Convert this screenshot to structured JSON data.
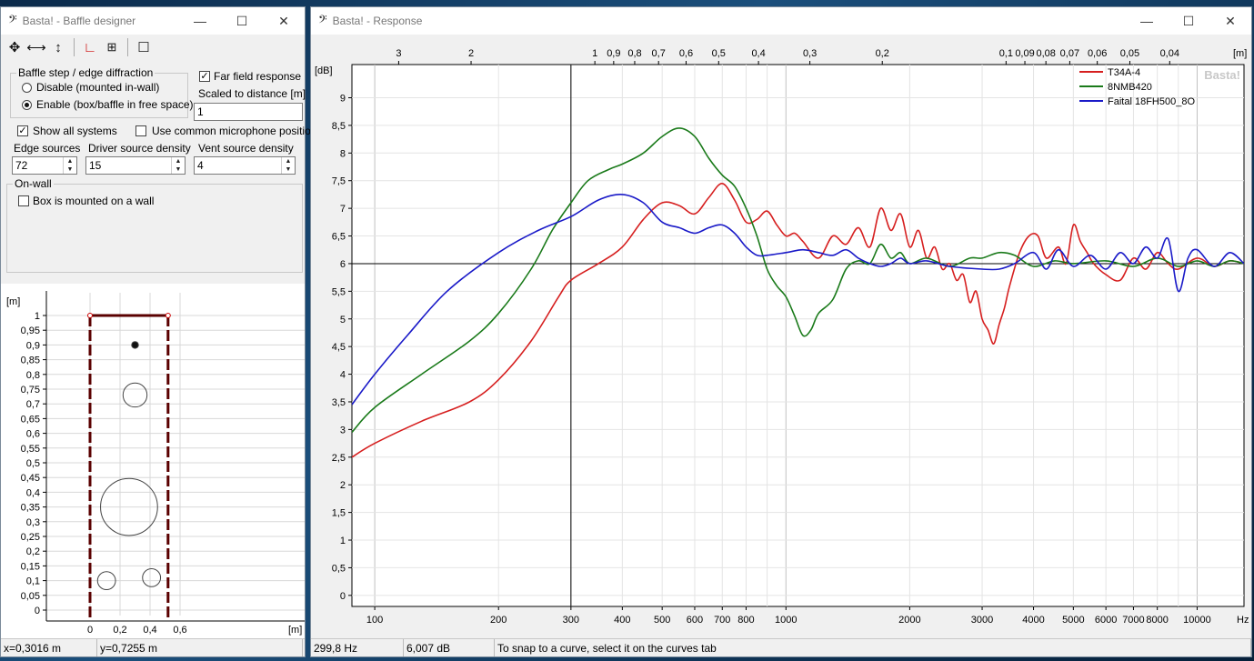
{
  "left_window": {
    "title": "Basta! - Baffle designer",
    "logo_glyph": "𝄢",
    "controls": {
      "minimize": "—",
      "maximize": "☐",
      "close": "✕"
    },
    "toolbar_icons": [
      "move-icon",
      "move-horizontal-icon",
      "move-vertical-icon",
      "corner-icon",
      "grid-icon",
      "square-icon"
    ],
    "diffraction_group": {
      "legend": "Baffle step / edge diffraction",
      "option_disable": "Disable (mounted in-wall)",
      "option_enable": "Enable (box/baffle in free space)",
      "selected": "enable"
    },
    "far_field": {
      "label": "Far field response",
      "checked": true
    },
    "scaled_label": "Scaled to distance [m]",
    "scaled_value": "1",
    "show_all_systems": {
      "label": "Show all systems",
      "checked": true
    },
    "common_mic": {
      "label": "Use common microphone position",
      "checked": false
    },
    "edge_sources": {
      "label": "Edge sources",
      "value": "72"
    },
    "driver_density": {
      "label": "Driver source density",
      "value": "15"
    },
    "vent_density": {
      "label": "Vent source density",
      "value": "4"
    },
    "on_wall": {
      "legend": "On-wall",
      "label": "Box is mounted on a wall",
      "checked": false
    },
    "plot": {
      "unit": "[m]",
      "y_ticks": [
        "1",
        "0,95",
        "0,9",
        "0,85",
        "0,8",
        "0,75",
        "0,7",
        "0,65",
        "0,6",
        "0,55",
        "0,5",
        "0,45",
        "0,4",
        "0,35",
        "0,3",
        "0,25",
        "0,2",
        "0,15",
        "0,1",
        "0,05",
        "0"
      ],
      "x_ticks": [
        "0",
        "0,2",
        "0,4",
        "0,6"
      ],
      "baffle_width_m": 0.52,
      "baffle_height_m": 1.0,
      "drivers": [
        {
          "name": "tweeter",
          "x_m": 0.3,
          "y_m": 0.9,
          "d_m": 0.045
        },
        {
          "name": "midrange",
          "x_m": 0.3,
          "y_m": 0.73,
          "d_m": 0.16
        },
        {
          "name": "woofer",
          "x_m": 0.26,
          "y_m": 0.35,
          "d_m": 0.38
        },
        {
          "name": "port-left",
          "x_m": 0.11,
          "y_m": 0.1,
          "d_m": 0.12
        },
        {
          "name": "port-right",
          "x_m": 0.41,
          "y_m": 0.11,
          "d_m": 0.12
        }
      ]
    },
    "status": {
      "x": "x=0,3016 m",
      "y": "y=0,7255 m"
    }
  },
  "right_window": {
    "title": "Basta! - Response",
    "logo_glyph": "𝄢",
    "controls": {
      "minimize": "—",
      "maximize": "☐",
      "close": "✕"
    },
    "watermark": "Basta!",
    "status": {
      "freq": "299,8 Hz",
      "level": "6,007 dB",
      "hint": "To snap to a curve, select it on the curves tab"
    }
  },
  "chart_data": {
    "type": "line",
    "ylabel": "[dB]",
    "xunit": "Hz",
    "top_axis_unit": "[m]",
    "xlim": [
      88,
      13000
    ],
    "ylim": [
      -0.2,
      9.6
    ],
    "x_scale": "log",
    "grid": true,
    "legend_position": "top-right",
    "cursor": {
      "x": 300,
      "y": 6.0
    },
    "x_ticks": [
      {
        "v": 100,
        "label": "100"
      },
      {
        "v": 200,
        "label": "200"
      },
      {
        "v": 300,
        "label": "300"
      },
      {
        "v": 400,
        "label": "400"
      },
      {
        "v": 500,
        "label": "500"
      },
      {
        "v": 600,
        "label": "600"
      },
      {
        "v": 700,
        "label": "700"
      },
      {
        "v": 800,
        "label": "800"
      },
      {
        "v": 1000,
        "label": "1000"
      },
      {
        "v": 2000,
        "label": "2000"
      },
      {
        "v": 3000,
        "label": "3000"
      },
      {
        "v": 4000,
        "label": "4000"
      },
      {
        "v": 5000,
        "label": "5000"
      },
      {
        "v": 6000,
        "label": "6000"
      },
      {
        "v": 7000,
        "label": "7000"
      },
      {
        "v": 8000,
        "label": "8000"
      },
      {
        "v": 10000,
        "label": "10000"
      }
    ],
    "top_ticks": [
      {
        "m": 3,
        "label": "3"
      },
      {
        "m": 2,
        "label": "2"
      },
      {
        "m": 1,
        "label": "1"
      },
      {
        "m": 0.9,
        "label": "0,9"
      },
      {
        "m": 0.8,
        "label": "0,8"
      },
      {
        "m": 0.7,
        "label": "0,7"
      },
      {
        "m": 0.6,
        "label": "0,6"
      },
      {
        "m": 0.5,
        "label": "0,5"
      },
      {
        "m": 0.4,
        "label": "0,4"
      },
      {
        "m": 0.3,
        "label": "0,3"
      },
      {
        "m": 0.2,
        "label": "0,2"
      },
      {
        "m": 0.1,
        "label": "0,1"
      },
      {
        "m": 0.09,
        "label": "0,09"
      },
      {
        "m": 0.08,
        "label": "0,08"
      },
      {
        "m": 0.07,
        "label": "0,07"
      },
      {
        "m": 0.06,
        "label": "0,06"
      },
      {
        "m": 0.05,
        "label": "0,05"
      },
      {
        "m": 0.04,
        "label": "0,04"
      }
    ],
    "y_ticks": [
      {
        "v": 0,
        "label": "0"
      },
      {
        "v": 0.5,
        "label": "0,5"
      },
      {
        "v": 1,
        "label": "1"
      },
      {
        "v": 1.5,
        "label": "1,5"
      },
      {
        "v": 2,
        "label": "2"
      },
      {
        "v": 2.5,
        "label": "2,5"
      },
      {
        "v": 3,
        "label": "3"
      },
      {
        "v": 3.5,
        "label": "3,5"
      },
      {
        "v": 4,
        "label": "4"
      },
      {
        "v": 4.5,
        "label": "4,5"
      },
      {
        "v": 5,
        "label": "5"
      },
      {
        "v": 5.5,
        "label": "5,5"
      },
      {
        "v": 6,
        "label": "6"
      },
      {
        "v": 6.5,
        "label": "6,5"
      },
      {
        "v": 7,
        "label": "7"
      },
      {
        "v": 7.5,
        "label": "7,5"
      },
      {
        "v": 8,
        "label": "8"
      },
      {
        "v": 8.5,
        "label": "8,5"
      },
      {
        "v": 9,
        "label": "9"
      }
    ],
    "series": [
      {
        "name": "T34A-4",
        "color": "#d61f1f",
        "points": [
          [
            88,
            2.5
          ],
          [
            100,
            2.75
          ],
          [
            130,
            3.15
          ],
          [
            170,
            3.5
          ],
          [
            200,
            3.9
          ],
          [
            240,
            4.6
          ],
          [
            280,
            5.4
          ],
          [
            300,
            5.7
          ],
          [
            350,
            6.0
          ],
          [
            400,
            6.3
          ],
          [
            450,
            6.8
          ],
          [
            500,
            7.1
          ],
          [
            550,
            7.05
          ],
          [
            600,
            6.9
          ],
          [
            650,
            7.2
          ],
          [
            700,
            7.45
          ],
          [
            750,
            7.15
          ],
          [
            800,
            6.75
          ],
          [
            850,
            6.8
          ],
          [
            900,
            6.95
          ],
          [
            950,
            6.7
          ],
          [
            1000,
            6.5
          ],
          [
            1050,
            6.55
          ],
          [
            1100,
            6.4
          ],
          [
            1200,
            6.1
          ],
          [
            1300,
            6.5
          ],
          [
            1400,
            6.35
          ],
          [
            1500,
            6.65
          ],
          [
            1600,
            6.3
          ],
          [
            1700,
            7.0
          ],
          [
            1800,
            6.6
          ],
          [
            1900,
            6.9
          ],
          [
            2000,
            6.3
          ],
          [
            2100,
            6.6
          ],
          [
            2200,
            6.1
          ],
          [
            2300,
            6.3
          ],
          [
            2400,
            5.9
          ],
          [
            2500,
            6.0
          ],
          [
            2600,
            5.7
          ],
          [
            2700,
            5.8
          ],
          [
            2800,
            5.3
          ],
          [
            2900,
            5.5
          ],
          [
            3000,
            5.0
          ],
          [
            3100,
            4.8
          ],
          [
            3200,
            4.55
          ],
          [
            3300,
            4.9
          ],
          [
            3400,
            5.2
          ],
          [
            3500,
            5.6
          ],
          [
            3700,
            6.2
          ],
          [
            3900,
            6.5
          ],
          [
            4100,
            6.5
          ],
          [
            4300,
            6.1
          ],
          [
            4600,
            6.3
          ],
          [
            4800,
            6.0
          ],
          [
            5000,
            6.7
          ],
          [
            5200,
            6.4
          ],
          [
            5400,
            6.2
          ],
          [
            5600,
            6.0
          ],
          [
            6000,
            5.8
          ],
          [
            6500,
            5.7
          ],
          [
            7000,
            6.1
          ],
          [
            7500,
            5.9
          ],
          [
            8000,
            6.2
          ],
          [
            8500,
            6.0
          ],
          [
            9000,
            5.9
          ],
          [
            10000,
            6.1
          ],
          [
            11000,
            5.95
          ],
          [
            12000,
            6.05
          ],
          [
            13000,
            6.0
          ]
        ]
      },
      {
        "name": "8NMB420",
        "color": "#1a7a1a",
        "points": [
          [
            88,
            2.95
          ],
          [
            100,
            3.4
          ],
          [
            130,
            4.0
          ],
          [
            170,
            4.6
          ],
          [
            200,
            5.1
          ],
          [
            240,
            5.9
          ],
          [
            270,
            6.6
          ],
          [
            300,
            7.1
          ],
          [
            330,
            7.5
          ],
          [
            370,
            7.7
          ],
          [
            400,
            7.8
          ],
          [
            450,
            8.0
          ],
          [
            500,
            8.3
          ],
          [
            550,
            8.45
          ],
          [
            600,
            8.3
          ],
          [
            650,
            7.9
          ],
          [
            700,
            7.6
          ],
          [
            750,
            7.4
          ],
          [
            800,
            7.0
          ],
          [
            850,
            6.5
          ],
          [
            900,
            5.9
          ],
          [
            950,
            5.6
          ],
          [
            1000,
            5.4
          ],
          [
            1050,
            5.05
          ],
          [
            1100,
            4.7
          ],
          [
            1150,
            4.8
          ],
          [
            1200,
            5.1
          ],
          [
            1300,
            5.35
          ],
          [
            1400,
            5.9
          ],
          [
            1500,
            6.05
          ],
          [
            1600,
            6.0
          ],
          [
            1700,
            6.35
          ],
          [
            1800,
            6.1
          ],
          [
            1900,
            6.2
          ],
          [
            2000,
            6.0
          ],
          [
            2200,
            6.1
          ],
          [
            2500,
            5.95
          ],
          [
            2800,
            6.1
          ],
          [
            3000,
            6.1
          ],
          [
            3300,
            6.2
          ],
          [
            3600,
            6.15
          ],
          [
            4000,
            5.95
          ],
          [
            4500,
            6.05
          ],
          [
            5000,
            6.0
          ],
          [
            6000,
            6.05
          ],
          [
            7000,
            5.95
          ],
          [
            8000,
            6.1
          ],
          [
            9000,
            5.95
          ],
          [
            10000,
            6.05
          ],
          [
            11000,
            5.95
          ],
          [
            12000,
            6.05
          ],
          [
            13000,
            6.0
          ]
        ]
      },
      {
        "name": "Faital 18FH500_8O",
        "color": "#1a1ac8",
        "points": [
          [
            88,
            3.45
          ],
          [
            100,
            4.0
          ],
          [
            120,
            4.7
          ],
          [
            150,
            5.5
          ],
          [
            200,
            6.2
          ],
          [
            250,
            6.6
          ],
          [
            300,
            6.85
          ],
          [
            350,
            7.15
          ],
          [
            400,
            7.25
          ],
          [
            450,
            7.1
          ],
          [
            500,
            6.75
          ],
          [
            550,
            6.65
          ],
          [
            600,
            6.55
          ],
          [
            650,
            6.65
          ],
          [
            700,
            6.7
          ],
          [
            750,
            6.55
          ],
          [
            800,
            6.3
          ],
          [
            850,
            6.15
          ],
          [
            900,
            6.15
          ],
          [
            1000,
            6.2
          ],
          [
            1100,
            6.25
          ],
          [
            1200,
            6.2
          ],
          [
            1300,
            6.15
          ],
          [
            1400,
            6.25
          ],
          [
            1500,
            6.1
          ],
          [
            1600,
            6.0
          ],
          [
            1700,
            5.95
          ],
          [
            1800,
            6.0
          ],
          [
            1900,
            6.1
          ],
          [
            2000,
            6.0
          ],
          [
            2200,
            6.05
          ],
          [
            2500,
            5.95
          ],
          [
            3000,
            5.9
          ],
          [
            3300,
            5.9
          ],
          [
            3600,
            6.0
          ],
          [
            4000,
            6.2
          ],
          [
            4300,
            5.9
          ],
          [
            4600,
            6.25
          ],
          [
            5000,
            5.95
          ],
          [
            5500,
            6.15
          ],
          [
            6000,
            5.9
          ],
          [
            6500,
            6.2
          ],
          [
            7000,
            6.0
          ],
          [
            7500,
            6.3
          ],
          [
            8000,
            6.1
          ],
          [
            8500,
            6.45
          ],
          [
            9000,
            5.5
          ],
          [
            9500,
            6.1
          ],
          [
            10000,
            6.25
          ],
          [
            11000,
            5.95
          ],
          [
            12000,
            6.2
          ],
          [
            13000,
            6.0
          ]
        ]
      }
    ]
  }
}
